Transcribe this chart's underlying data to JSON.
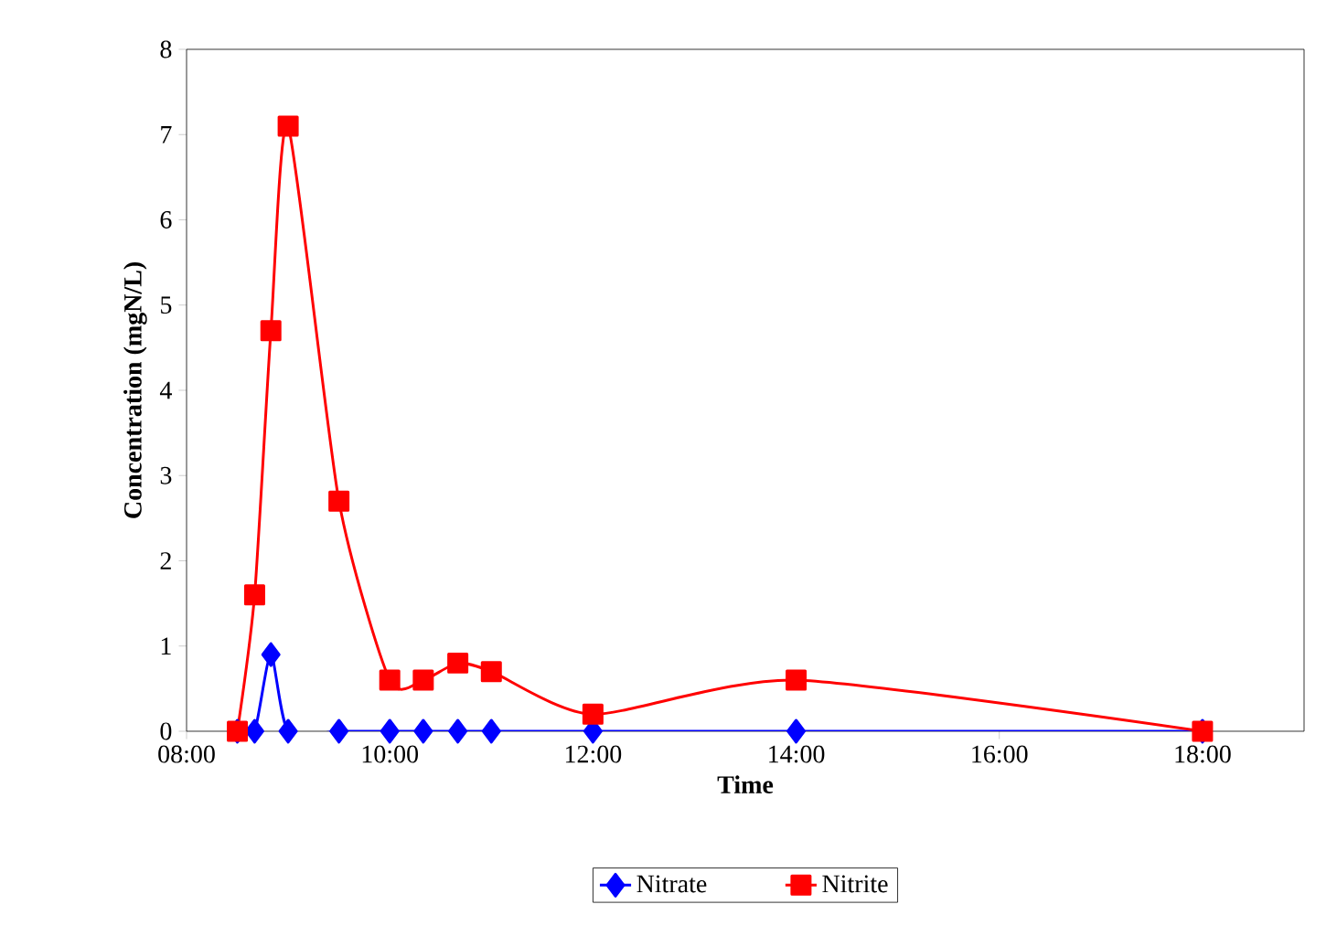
{
  "chart_data": {
    "type": "line",
    "xlabel": "Time",
    "ylabel": "Concentration (mgN/L)",
    "x": [
      8.5,
      8.67,
      8.83,
      9.0,
      9.5,
      10.0,
      10.33,
      10.67,
      11.0,
      12.0,
      14.0,
      18.0
    ],
    "series": [
      {
        "name": "Nitrate",
        "color": "#0000ff",
        "marker": "diamond",
        "values": [
          0,
          0,
          0.9,
          0,
          0,
          0,
          0,
          0,
          0,
          0,
          0,
          0
        ]
      },
      {
        "name": "Nitrite",
        "color": "#ff0000",
        "marker": "square",
        "values": [
          0,
          1.6,
          4.7,
          7.1,
          2.7,
          0.6,
          0.6,
          0.8,
          0.7,
          0.2,
          0.6,
          0
        ]
      }
    ],
    "xlim": [
      8,
      19
    ],
    "xticks": [
      {
        "value": 8,
        "label": "08:00"
      },
      {
        "value": 10,
        "label": "10:00"
      },
      {
        "value": 12,
        "label": "12:00"
      },
      {
        "value": 14,
        "label": "14:00"
      },
      {
        "value": 16,
        "label": "16:00"
      },
      {
        "value": 18,
        "label": "18:00"
      }
    ],
    "ylim": [
      0,
      8
    ],
    "yticks": [
      0,
      1,
      2,
      3,
      4,
      5,
      6,
      7,
      8
    ],
    "legend": "bottom",
    "grid": false,
    "line_style": "solid"
  }
}
